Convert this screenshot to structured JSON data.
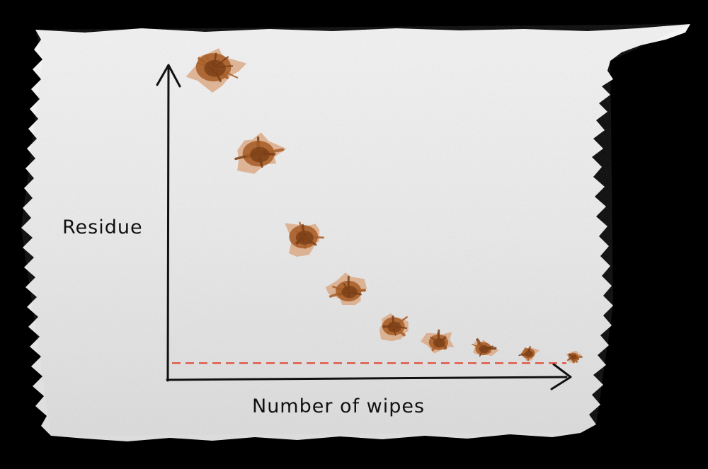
{
  "colors": {
    "background": "#000000",
    "paper": "#eeeeee",
    "axis": "#111111",
    "stain_dark": "#7a3f17",
    "stain_mid": "#a85f2a",
    "stain_light": "#d9a27a",
    "reference_line": "#e0402c"
  },
  "chart_data": {
    "type": "scatter",
    "title": "",
    "xlabel": "Number of wipes",
    "ylabel": "Residue",
    "x_ticks": "none",
    "y_ticks": "none",
    "grid": false,
    "legend": "none",
    "xlim": [
      0,
      9
    ],
    "ylim": [
      0,
      10
    ],
    "x": [
      1,
      2,
      3,
      4,
      5,
      6,
      7,
      8,
      9
    ],
    "y": [
      9.4,
      6.7,
      4.1,
      2.4,
      1.3,
      0.8,
      0.6,
      0.45,
      0.35
    ],
    "reference_line": {
      "orientation": "horizontal",
      "y": 0.15,
      "style": "dashed",
      "color": "#e0402c"
    },
    "marker_style": "brown stain blots",
    "trend": "decreasing, levelling off"
  }
}
